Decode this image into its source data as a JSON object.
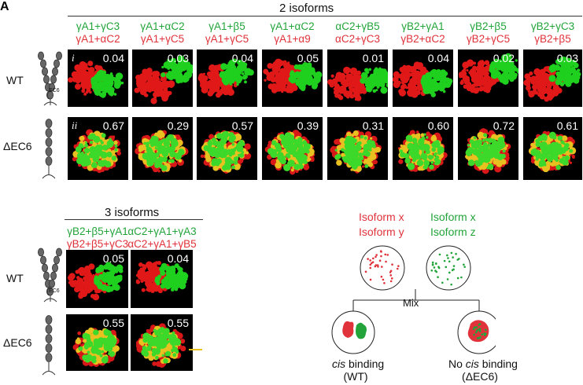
{
  "panel_letter": "A",
  "top": {
    "title": "2 isoforms",
    "columns": [
      {
        "green": "γA1+γC3",
        "red": "γA1+αC2",
        "wt": "0.04",
        "dec6": "0.67"
      },
      {
        "green": "γA1+αC2",
        "red": "γA1+γC5",
        "wt": "0.03",
        "dec6": "0.29"
      },
      {
        "green": "γA1+β5",
        "red": "γA1+γC5",
        "wt": "0.04",
        "dec6": "0.57"
      },
      {
        "green": "γA1+αC2",
        "red": "γA1+α9",
        "wt": "0.05",
        "dec6": "0.39"
      },
      {
        "green": "αC2+γB5",
        "red": "αC2+γC3",
        "wt": "0.01",
        "dec6": "0.31"
      },
      {
        "green": "γB2+γA1",
        "red": "γB2+αC2",
        "wt": "0.04",
        "dec6": "0.60"
      },
      {
        "green": "γB2+β5",
        "red": "γB2+γC5",
        "wt": "0.02",
        "dec6": "0.72"
      },
      {
        "green": "γB2+γC3",
        "red": "γB2+β5",
        "wt": "0.03",
        "dec6": "0.61"
      }
    ],
    "row_i": "i",
    "row_ii": "ii"
  },
  "bottom": {
    "title": "3 isoforms",
    "columns": [
      {
        "green": "γB2+β5+γA1",
        "red": "γB2+β5+γC3",
        "wt": "0.05",
        "dec6": "0.55"
      },
      {
        "green": "αC2+γA1+γA3",
        "red": "αC2+γA1+γB5",
        "wt": "0.04",
        "dec6": "0.55"
      }
    ]
  },
  "rows": {
    "wt": "WT",
    "dec6": "ΔEC6",
    "ec6": "EC6"
  },
  "schematic": {
    "left_line1": "Isoform x",
    "left_line2": "Isoform y",
    "right_line1": "Isoform x",
    "right_line2": "Isoform z",
    "mix": "Mix",
    "cis_pre": "",
    "cis_word": "cis",
    "cis_post": " binding",
    "cis_sub": "(WT)",
    "nocis_pre": "No ",
    "nocis_word": "cis",
    "nocis_post": " binding",
    "nocis_sub": "(ΔEC6)"
  },
  "colors": {
    "green": "#22a43a",
    "red": "#e0323a",
    "scale_bar": "#e8c21a"
  }
}
